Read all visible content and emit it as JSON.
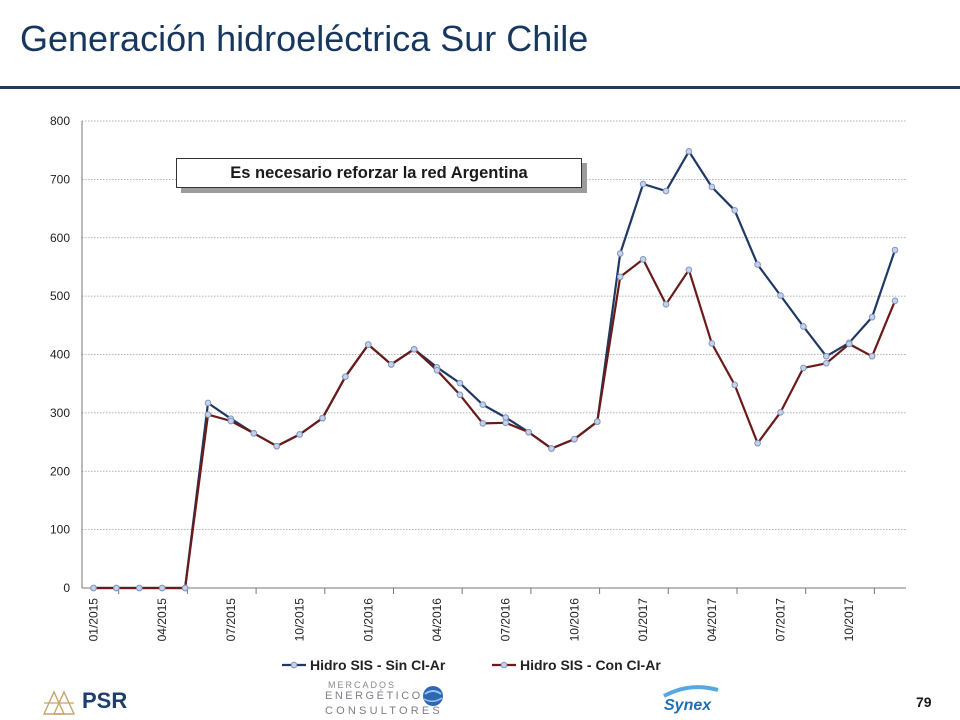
{
  "slide": {
    "title": "Generación hidroeléctrica Sur Chile",
    "callout": "Es necesario reforzar la red Argentina",
    "page_number": "79"
  },
  "footer": {
    "psr_logo_text": "PSR",
    "mec_line1": "MERCADOS",
    "mec_line2": "ENERGÉTICOS",
    "mec_line3": "CONSULTORES",
    "synex_logo_text": "Synex"
  },
  "colors": {
    "title": "#17375e",
    "series_sin": "#1f3864",
    "series_con": "#6b1a1a",
    "marker_fill": "#c5d3ea",
    "marker_stroke": "#8096bd"
  },
  "chart_data": {
    "type": "line",
    "title": "",
    "xlabel": "",
    "ylabel": "",
    "ylim": [
      0,
      800
    ],
    "yticks": [
      "0",
      "100",
      "200",
      "300",
      "400",
      "500",
      "600",
      "700",
      "800"
    ],
    "grid": true,
    "legend_position": "bottom",
    "x_ticks": [
      "01/2015",
      "04/2015",
      "07/2015",
      "10/2015",
      "01/2016",
      "04/2016",
      "07/2016",
      "10/2016",
      "01/2017",
      "04/2017",
      "07/2017",
      "10/2017"
    ],
    "x": [
      "01/2015",
      "02/2015",
      "03/2015",
      "04/2015",
      "05/2015",
      "06/2015",
      "07/2015",
      "08/2015",
      "09/2015",
      "10/2015",
      "11/2015",
      "12/2015",
      "01/2016",
      "02/2016",
      "03/2016",
      "04/2016",
      "05/2016",
      "06/2016",
      "07/2016",
      "08/2016",
      "09/2016",
      "10/2016",
      "11/2016",
      "12/2016",
      "01/2017",
      "02/2017",
      "03/2017",
      "04/2017",
      "05/2017",
      "06/2017",
      "07/2017",
      "08/2017",
      "09/2017",
      "10/2017",
      "11/2017",
      "12/2017"
    ],
    "series": [
      {
        "name": "Hidro SIS - Sin CI-Ar",
        "values": [
          0,
          0,
          0,
          0,
          0,
          317,
          290,
          265,
          243,
          263,
          291,
          362,
          417,
          383,
          409,
          378,
          351,
          314,
          292,
          267,
          239,
          255,
          285,
          573,
          692,
          680,
          748,
          687,
          647,
          554,
          501,
          448,
          397,
          420,
          464,
          579
        ]
      },
      {
        "name": "Hidro SIS - Con CI-Ar",
        "values": [
          0,
          0,
          0,
          0,
          0,
          297,
          286,
          265,
          243,
          263,
          291,
          362,
          417,
          383,
          409,
          373,
          331,
          282,
          283,
          267,
          239,
          255,
          285,
          533,
          563,
          486,
          545,
          419,
          348,
          248,
          301,
          377,
          385,
          418,
          397,
          492
        ]
      }
    ]
  }
}
